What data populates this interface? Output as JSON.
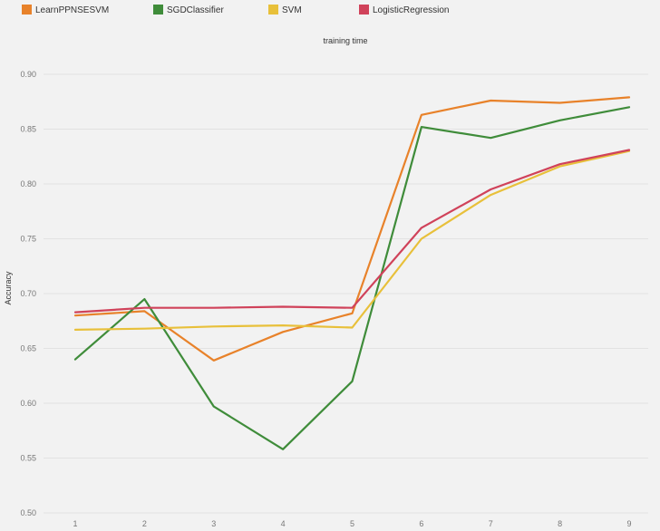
{
  "chart_data": {
    "type": "line",
    "title": "training time",
    "xlabel": "",
    "ylabel": "Accuracy",
    "x": [
      1,
      2,
      3,
      4,
      5,
      6,
      7,
      8,
      9
    ],
    "x_tick_labels": [
      "1",
      "2",
      "3",
      "4",
      "5",
      "6",
      "7",
      "8",
      "9"
    ],
    "ylim": [
      0.5,
      0.9
    ],
    "y_ticks": [
      0.5,
      0.55,
      0.6,
      0.65,
      0.7,
      0.75,
      0.8,
      0.85,
      0.9
    ],
    "y_tick_labels": [
      "0.50",
      "0.55",
      "0.60",
      "0.65",
      "0.70",
      "0.75",
      "0.80",
      "0.85",
      "0.90"
    ],
    "grid": "horizontal",
    "legend_position": "top",
    "series": [
      {
        "name": "LearnPPNSESVM",
        "color": "#e8822a",
        "values": [
          0.68,
          0.684,
          0.639,
          0.665,
          0.682,
          0.863,
          0.876,
          0.874,
          0.879
        ]
      },
      {
        "name": "SGDClassifier",
        "color": "#3f8c3a",
        "values": [
          0.64,
          0.695,
          0.597,
          0.558,
          0.62,
          0.852,
          0.842,
          0.858,
          0.87
        ]
      },
      {
        "name": "SVM",
        "color": "#e8c03a",
        "values": [
          0.667,
          0.668,
          0.67,
          0.671,
          0.669,
          0.75,
          0.79,
          0.816,
          0.83
        ]
      },
      {
        "name": "LogisticRegression",
        "color": "#d0425a",
        "values": [
          0.683,
          0.687,
          0.687,
          0.688,
          0.687,
          0.76,
          0.795,
          0.818,
          0.831
        ]
      }
    ]
  }
}
